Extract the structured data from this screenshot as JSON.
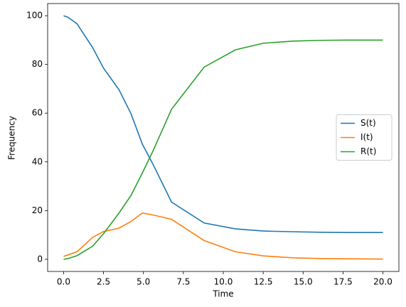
{
  "chart_data": {
    "type": "line",
    "x_label": "Time",
    "y_label": "Frequency",
    "x": [
      0,
      0.27,
      0.84,
      1.82,
      2.5,
      3.47,
      4.22,
      4.93,
      5.6,
      6.76,
      8.8,
      10.76,
      12.5,
      14.4,
      16.1,
      17.8,
      20
    ],
    "series": [
      {
        "name": "S(t)",
        "color": "#1f77b4",
        "values": [
          100,
          99.4,
          96.7,
          86.9,
          78.5,
          69.6,
          59.8,
          47.3,
          39,
          23.5,
          14.9,
          12.5,
          11.6,
          11.3,
          11.1,
          11.0,
          11.0
        ]
      },
      {
        "name": "I(t)",
        "color": "#ff7f0e",
        "values": [
          1.2,
          1.8,
          3.1,
          9,
          11.4,
          12.8,
          15.5,
          19,
          18.2,
          16.4,
          7.7,
          3.1,
          1.4,
          0.6,
          0.3,
          0.2,
          0.1
        ]
      },
      {
        "name": "R(t)",
        "color": "#2ca02c",
        "values": [
          0,
          0.3,
          1.5,
          5.4,
          10.5,
          19,
          26.2,
          35.4,
          44.5,
          61.6,
          78.9,
          86,
          88.7,
          89.6,
          89.9,
          90,
          90
        ]
      }
    ],
    "xlim": [
      -1,
      21
    ],
    "ylim": [
      -5,
      105
    ],
    "xticks": [
      {
        "value": 0,
        "label": "0.0"
      },
      {
        "value": 2.5,
        "label": "2.5"
      },
      {
        "value": 5,
        "label": "5.0"
      },
      {
        "value": 7.5,
        "label": "7.5"
      },
      {
        "value": 10,
        "label": "10.0"
      },
      {
        "value": 12.5,
        "label": "12.5"
      },
      {
        "value": 15,
        "label": "15.0"
      },
      {
        "value": 17.5,
        "label": "17.5"
      },
      {
        "value": 20,
        "label": "20.0"
      }
    ],
    "yticks": [
      0,
      20,
      40,
      60,
      80,
      100
    ],
    "legend": "center right"
  }
}
